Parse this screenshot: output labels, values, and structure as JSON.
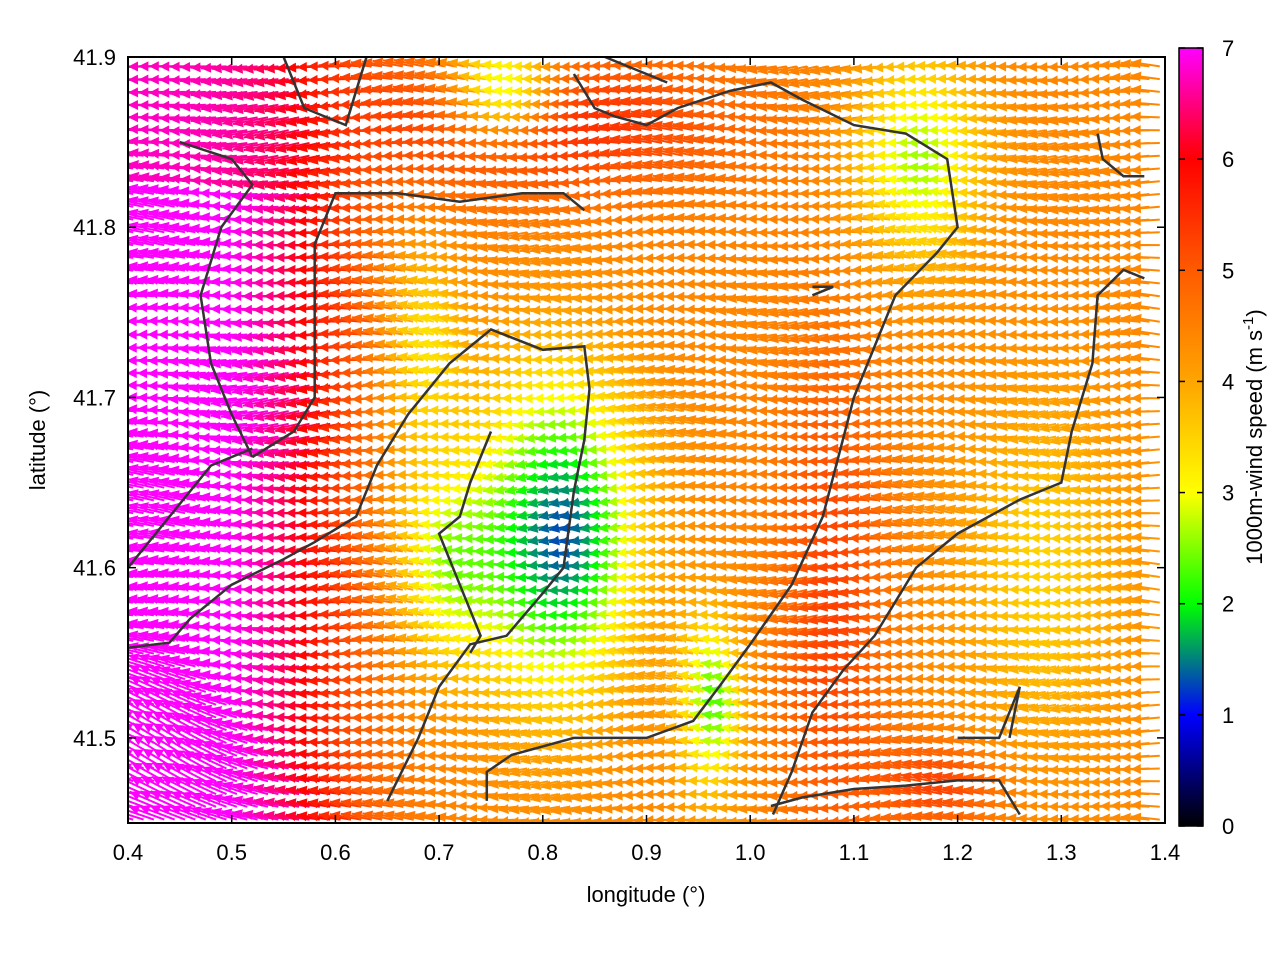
{
  "chart_data": {
    "type": "vector-field",
    "xlabel": "longitude (°)",
    "ylabel": "latitude (°)",
    "xlim": [
      0.4,
      1.4
    ],
    "ylim": [
      41.45,
      41.9
    ],
    "xticks": [
      "0.4",
      "0.5",
      "0.6",
      "0.7",
      "0.8",
      "0.9",
      "1.0",
      "1.1",
      "1.2",
      "1.3",
      "1.4"
    ],
    "yticks": [
      "41.5",
      "41.6",
      "41.7",
      "41.8",
      "41.9"
    ],
    "colorbar": {
      "label": "1000m-wind speed (m s",
      "label_sup": "-1",
      "label_end": ")",
      "range": [
        0,
        7
      ],
      "ticks": [
        "0",
        "1",
        "2",
        "3",
        "4",
        "5",
        "6",
        "7"
      ],
      "palette": [
        "#000000",
        "#0000ff",
        "#00ff00",
        "#ffff00",
        "#ffa500",
        "#ff5a00",
        "#ff0000",
        "#ff00ff"
      ]
    },
    "wind_direction": "westward (from east)",
    "speed_field_description": "high speeds (6-7 m/s, magenta) in west; calm core (1-2.5 m/s, blue-green) near 0.8-0.9°E 41.55-41.7°N; orange 4-5 m/s in east",
    "contour_color": "#333333"
  }
}
